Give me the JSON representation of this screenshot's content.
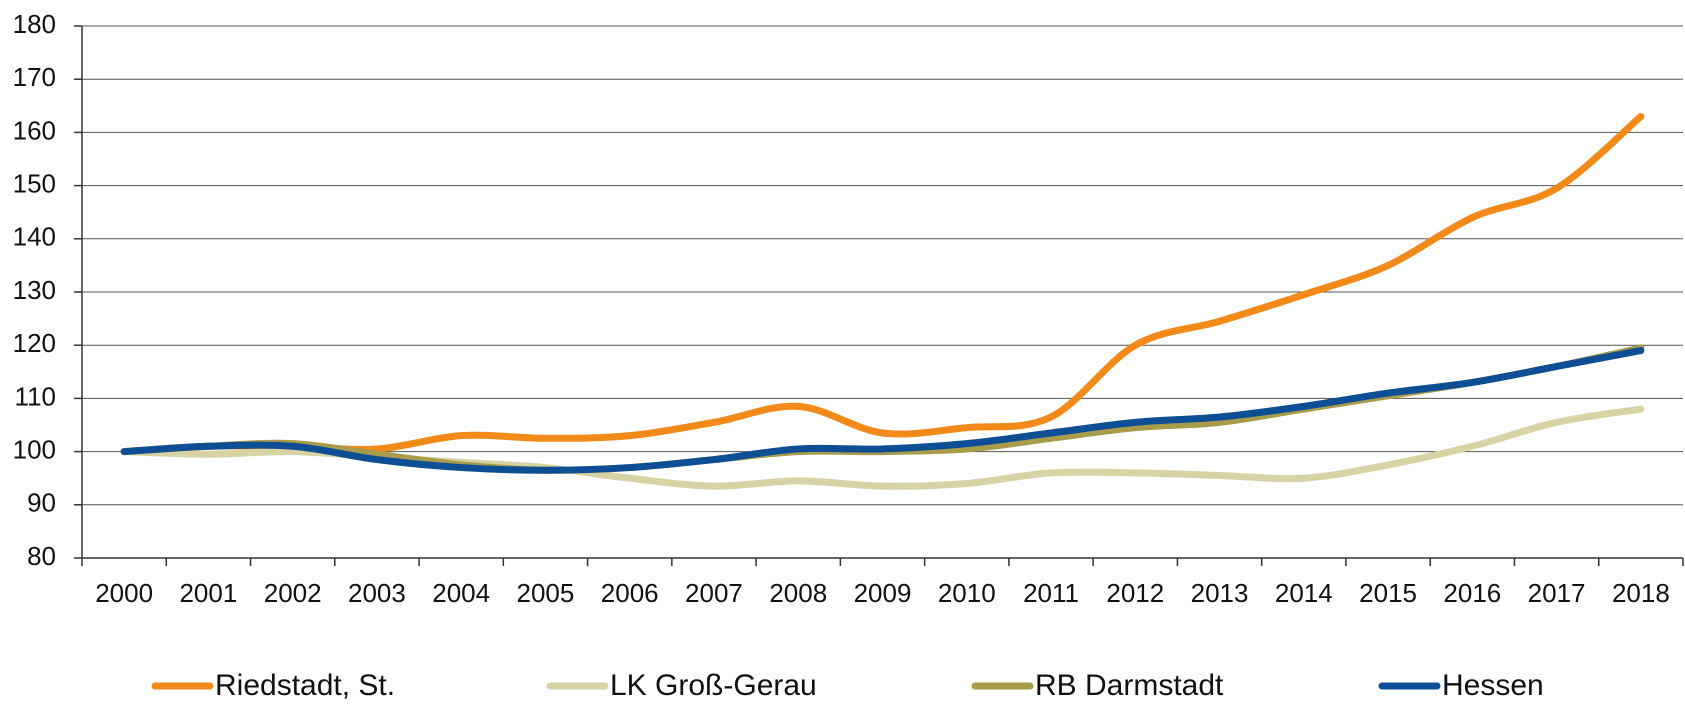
{
  "chart_data": {
    "type": "line",
    "categories": [
      "2000",
      "2001",
      "2002",
      "2003",
      "2004",
      "2005",
      "2006",
      "2007",
      "2008",
      "2009",
      "2010",
      "2011",
      "2012",
      "2013",
      "2014",
      "2015",
      "2016",
      "2017",
      "2018"
    ],
    "series": [
      {
        "name": "Riedstadt, St.",
        "color": "#f28a1a",
        "values": [
          100,
          101,
          101,
          100.5,
          103,
          102.5,
          103,
          105.5,
          108.5,
          103.5,
          104.5,
          106.5,
          120,
          124.5,
          129.5,
          135,
          144,
          149.5,
          163
        ]
      },
      {
        "name": "LK Groß-Gerau",
        "color": "#d8d3a4",
        "values": [
          100,
          99.5,
          100,
          99,
          98,
          97,
          95,
          93.5,
          94.5,
          93.5,
          94,
          96,
          96,
          95.5,
          95,
          97.5,
          101,
          105.5,
          108
        ]
      },
      {
        "name": "RB Darmstadt",
        "color": "#a89b4a",
        "values": [
          100,
          101,
          101.5,
          99.5,
          97.5,
          96.5,
          97,
          98.5,
          100,
          100,
          100.5,
          102.5,
          104.5,
          105.5,
          108,
          110.5,
          113,
          116,
          119.5
        ]
      },
      {
        "name": "Hessen",
        "color": "#0e4e94",
        "values": [
          100,
          101,
          101,
          98.5,
          97,
          96.5,
          97,
          98.5,
          100.5,
          100.5,
          101.5,
          103.5,
          105.5,
          106.5,
          108.5,
          111,
          113,
          116,
          119
        ]
      }
    ],
    "ylim": [
      80,
      180
    ],
    "yticks": [
      80,
      90,
      100,
      110,
      120,
      130,
      140,
      150,
      160,
      170,
      180
    ],
    "grid": true
  }
}
